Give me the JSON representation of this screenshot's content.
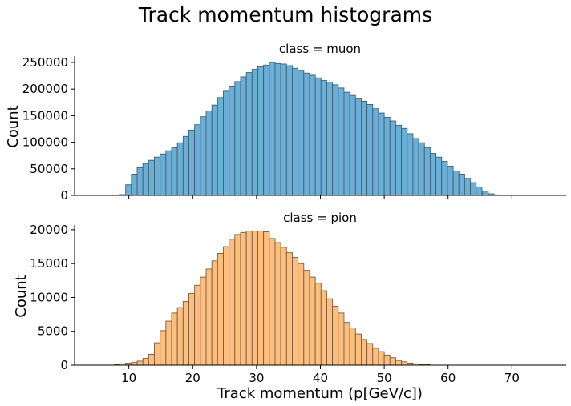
{
  "figure": {
    "title": "Track momentum histograms"
  },
  "chart_data": [
    {
      "type": "bar",
      "subtype": "histogram",
      "title": "class = muon",
      "xlabel": "",
      "ylabel": "Count",
      "color": "#6baed6",
      "edge_color": "#3f5f73",
      "xlim": [
        1.5,
        78.5
      ],
      "ylim": [
        0,
        262000
      ],
      "yticks": [
        0,
        50000,
        100000,
        150000,
        200000,
        250000
      ],
      "xticks": [
        10,
        20,
        30,
        40,
        50,
        60,
        70
      ],
      "bin_width": 0.9,
      "bin_starts": [
        4.1,
        5.0,
        5.9,
        6.8,
        7.7,
        8.6,
        9.5,
        10.4,
        11.3,
        12.2,
        13.1,
        14.0,
        14.9,
        15.8,
        16.7,
        17.6,
        18.5,
        19.4,
        20.3,
        21.2,
        22.1,
        23.0,
        23.9,
        24.8,
        25.7,
        26.6,
        27.5,
        28.4,
        29.3,
        30.2,
        31.1,
        32.0,
        32.9,
        33.8,
        34.7,
        35.6,
        36.5,
        37.4,
        38.3,
        39.2,
        40.1,
        41.0,
        41.9,
        42.8,
        43.7,
        44.6,
        45.5,
        46.4,
        47.3,
        48.2,
        49.1,
        50.0,
        50.9,
        51.8,
        52.7,
        53.6,
        54.5,
        55.4,
        56.3,
        57.2,
        58.1,
        59.0,
        59.9,
        60.8,
        61.7,
        62.6,
        63.5,
        64.4,
        65.4,
        66.3,
        67.2,
        68.1,
        69.0,
        69.9,
        70.8,
        71.7,
        72.6,
        73.5,
        74.4
      ],
      "values": [
        0,
        0,
        0,
        0,
        500,
        1500,
        20000,
        40000,
        52000,
        60000,
        66000,
        72000,
        78000,
        84000,
        90000,
        99000,
        111000,
        123000,
        133000,
        148000,
        159000,
        170000,
        184000,
        196000,
        204000,
        214000,
        223000,
        231000,
        237000,
        242000,
        245000,
        250000,
        248000,
        247000,
        244000,
        239000,
        235000,
        230000,
        226000,
        221000,
        216000,
        213000,
        208000,
        202000,
        194000,
        188000,
        182000,
        177000,
        171000,
        163000,
        155000,
        147000,
        140000,
        132000,
        126000,
        116000,
        107000,
        99000,
        90000,
        79000,
        72000,
        64000,
        55000,
        46000,
        40000,
        32000,
        24000,
        16000,
        8000,
        3000,
        1000,
        0,
        0,
        0,
        0,
        0,
        0,
        0,
        0
      ]
    },
    {
      "type": "bar",
      "subtype": "histogram",
      "title": "class = pion",
      "xlabel": "Track momentum (p[GeV/c])",
      "ylabel": "Count",
      "color": "#fdbf7f",
      "edge_color": "#7a5a3a",
      "xlim": [
        1.5,
        78.5
      ],
      "ylim": [
        0,
        20700
      ],
      "yticks": [
        0,
        5000,
        10000,
        15000,
        20000
      ],
      "xticks": [
        10,
        20,
        30,
        40,
        50,
        60,
        70
      ],
      "bin_width": 0.9,
      "bin_starts": [
        4.1,
        5.0,
        5.9,
        6.8,
        7.7,
        8.6,
        9.5,
        10.4,
        11.3,
        12.2,
        13.1,
        14.0,
        14.9,
        15.8,
        16.7,
        17.6,
        18.5,
        19.4,
        20.3,
        21.2,
        22.1,
        23.0,
        23.9,
        24.8,
        25.7,
        26.6,
        27.5,
        28.4,
        29.3,
        30.2,
        31.1,
        32.0,
        32.9,
        33.8,
        34.7,
        35.6,
        36.5,
        37.4,
        38.3,
        39.2,
        40.1,
        41.0,
        41.9,
        42.8,
        43.7,
        44.6,
        45.5,
        46.4,
        47.3,
        48.2,
        49.1,
        50.0,
        50.9,
        51.8,
        52.7,
        53.6,
        54.5,
        55.4,
        56.3,
        57.2,
        58.1,
        59.0,
        59.9,
        60.8,
        61.7,
        62.6,
        63.5,
        64.4,
        65.4,
        66.3,
        67.2,
        68.1,
        69.0,
        69.9,
        70.8,
        71.7,
        72.6,
        73.5,
        74.4
      ],
      "values": [
        0,
        0,
        0,
        0,
        100,
        200,
        300,
        400,
        600,
        1000,
        1600,
        3300,
        5100,
        6500,
        7700,
        8500,
        9400,
        10600,
        11800,
        13000,
        14200,
        15400,
        16500,
        17500,
        18600,
        19300,
        19600,
        19800,
        19800,
        19800,
        19700,
        18700,
        18100,
        17400,
        16600,
        15900,
        15000,
        14000,
        13000,
        12100,
        11000,
        9800,
        8700,
        7700,
        6300,
        5500,
        4600,
        3800,
        3200,
        2500,
        2000,
        1500,
        1100,
        700,
        500,
        300,
        200,
        100,
        100,
        0,
        0,
        0,
        0,
        0,
        0,
        0,
        0,
        0,
        0,
        0,
        0,
        0,
        0,
        0,
        0,
        0,
        0,
        0,
        0
      ]
    }
  ]
}
